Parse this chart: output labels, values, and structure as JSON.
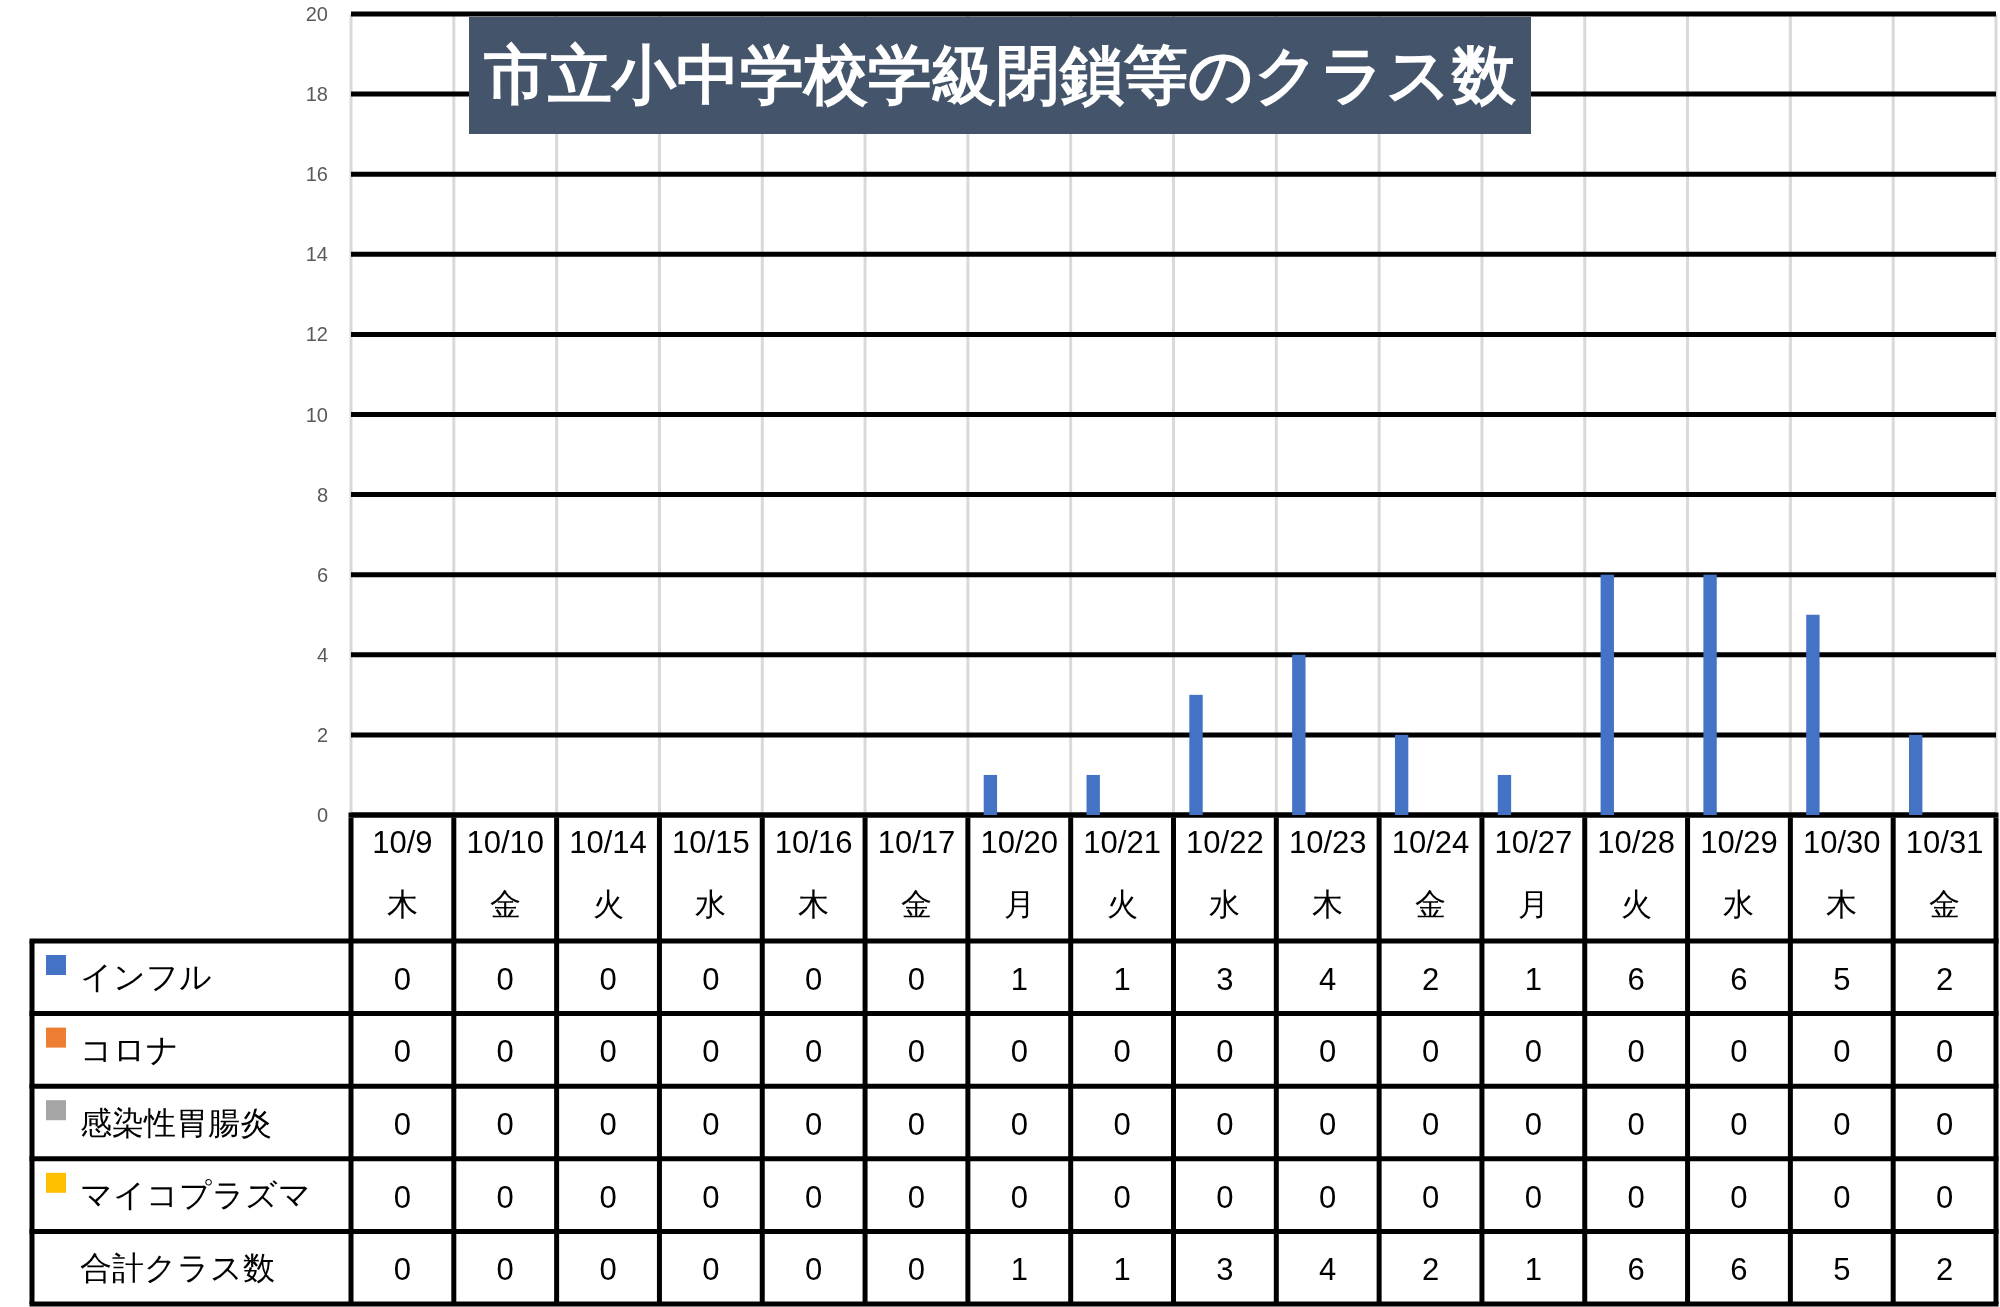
{
  "chart_data": {
    "type": "bar",
    "title": "市立小中学校学級閉鎖等のクラス数",
    "categories": [
      "10/9\n木",
      "10/10\n金",
      "10/14\n火",
      "10/15\n水",
      "10/16\n木",
      "10/17\n金",
      "10/20\n月",
      "10/21\n火",
      "10/22\n水",
      "10/23\n木",
      "10/24\n金",
      "10/27\n月",
      "10/28\n火",
      "10/29\n水",
      "10/30\n木",
      "10/31\n金"
    ],
    "series": [
      {
        "name": "インフル",
        "color": "#4472c4",
        "values": [
          0,
          0,
          0,
          0,
          0,
          0,
          1,
          1,
          3,
          4,
          2,
          1,
          6,
          6,
          5,
          2
        ]
      },
      {
        "name": "コロナ",
        "color": "#ed7d31",
        "values": [
          0,
          0,
          0,
          0,
          0,
          0,
          0,
          0,
          0,
          0,
          0,
          0,
          0,
          0,
          0,
          0
        ]
      },
      {
        "name": "感染性胃腸炎",
        "color": "#a5a5a5",
        "values": [
          0,
          0,
          0,
          0,
          0,
          0,
          0,
          0,
          0,
          0,
          0,
          0,
          0,
          0,
          0,
          0
        ]
      },
      {
        "name": "マイコプラズマ",
        "color": "#ffc000",
        "values": [
          0,
          0,
          0,
          0,
          0,
          0,
          0,
          0,
          0,
          0,
          0,
          0,
          0,
          0,
          0,
          0
        ]
      }
    ],
    "ylim": [
      0,
      20
    ],
    "yticks": [
      0,
      2,
      4,
      6,
      8,
      10,
      12,
      14,
      16,
      18,
      20
    ],
    "grid": true,
    "data_labels": true,
    "annotations": [
      "合計クラス数",
      "0",
      "0",
      "0",
      "0",
      "0",
      "0",
      "1",
      "1",
      "3",
      "4",
      "2",
      "1",
      "6",
      "6",
      "5",
      "2"
    ]
  }
}
